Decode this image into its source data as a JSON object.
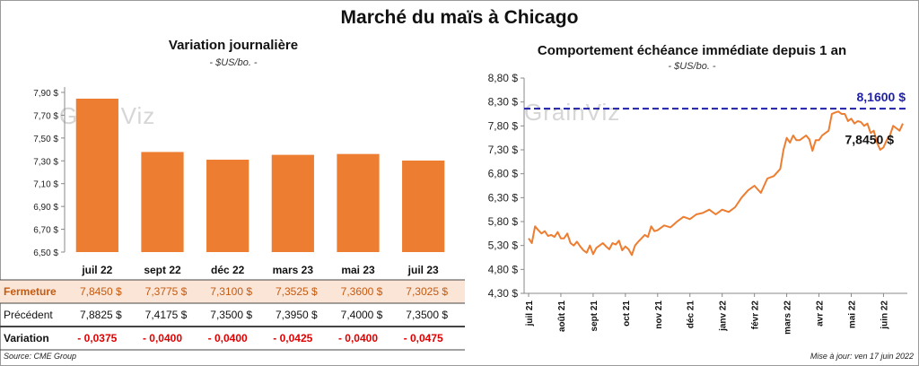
{
  "title": "Marché du maïs à Chicago",
  "left": {
    "title": "Variation  journalière",
    "subtitle": "- $US/bo. -"
  },
  "right": {
    "title": "Comportement  échéance immédiate depuis 1 an",
    "subtitle": "- $US/bo. -"
  },
  "watermark": "GrainViz",
  "table": {
    "row_labels": [
      "Fermeture",
      "Précédent",
      "Variation"
    ],
    "fermeture": [
      "7,8450  $",
      "7,3775  $",
      "7,3100  $",
      "7,3525  $",
      "7,3600  $",
      "7,3025  $"
    ],
    "precedent": [
      "7,8825  $",
      "7,4175  $",
      "7,3500  $",
      "7,3950  $",
      "7,4000  $",
      "7,3500  $"
    ],
    "variation": [
      "- 0,0375",
      "- 0,0400",
      "- 0,0400",
      "- 0,0425",
      "- 0,0400",
      "- 0,0475"
    ]
  },
  "footer": {
    "source": "Source: CME Group",
    "update": "Mise à jour: ven 17 juin 2022"
  },
  "colors": {
    "bar": "#ED7D31",
    "line": "#ED7D31",
    "ref_line": "#1F1FA8",
    "neg": "#E00000",
    "fermeture_bg": "#FBE5D6"
  },
  "chart_data": [
    {
      "type": "bar",
      "title": "Variation  journalière",
      "subtitle": "- $US/bo. -",
      "categories": [
        "juil 22",
        "sept 22",
        "déc 22",
        "mars 23",
        "mai 23",
        "juil 23"
      ],
      "values": [
        7.845,
        7.3775,
        7.31,
        7.3525,
        7.36,
        7.3025
      ],
      "ylim": [
        6.5,
        7.9
      ],
      "yticks": [
        "6,50 $",
        "6,70 $",
        "6,90 $",
        "7,10 $",
        "7,30 $",
        "7,50 $",
        "7,70 $",
        "7,90 $"
      ],
      "ytick_values": [
        6.5,
        6.7,
        6.9,
        7.1,
        7.3,
        7.5,
        7.7,
        7.9
      ],
      "grid": false
    },
    {
      "type": "line",
      "title": "Comportement  échéance immédiate depuis 1 an",
      "subtitle": "- $US/bo. -",
      "ylim": [
        4.3,
        8.8
      ],
      "yticks": [
        "4,30 $",
        "4,80 $",
        "5,30 $",
        "5,80 $",
        "6,30 $",
        "6,80 $",
        "7,30 $",
        "7,80 $",
        "8,30 $",
        "8,80 $"
      ],
      "ytick_values": [
        4.3,
        4.8,
        5.3,
        5.8,
        6.3,
        6.8,
        7.3,
        7.8,
        8.3,
        8.8
      ],
      "xticks": [
        "juil 21",
        "août 21",
        "sept 21",
        "oct 21",
        "nov 21",
        "déc 21",
        "janv 22",
        "févr 22",
        "mars 22",
        "avr 22",
        "mai 22",
        "juin 22"
      ],
      "xtick_positions": [
        0,
        1,
        2,
        3,
        4,
        5,
        6,
        7,
        8,
        9,
        10,
        11
      ],
      "x_range": [
        0,
        11.6
      ],
      "x": [
        0,
        0.1,
        0.2,
        0.3,
        0.4,
        0.5,
        0.6,
        0.7,
        0.8,
        0.9,
        1.0,
        1.1,
        1.2,
        1.3,
        1.4,
        1.5,
        1.6,
        1.7,
        1.8,
        1.9,
        2.0,
        2.1,
        2.2,
        2.3,
        2.4,
        2.5,
        2.6,
        2.7,
        2.8,
        2.9,
        3.0,
        3.1,
        3.2,
        3.3,
        3.4,
        3.5,
        3.6,
        3.7,
        3.8,
        3.9,
        4.0,
        4.2,
        4.4,
        4.6,
        4.8,
        5.0,
        5.2,
        5.4,
        5.6,
        5.8,
        6.0,
        6.2,
        6.4,
        6.6,
        6.8,
        7.0,
        7.2,
        7.4,
        7.6,
        7.8,
        7.9,
        8.0,
        8.1,
        8.2,
        8.3,
        8.4,
        8.5,
        8.6,
        8.7,
        8.8,
        8.9,
        9.0,
        9.1,
        9.2,
        9.3,
        9.4,
        9.5,
        9.6,
        9.7,
        9.8,
        9.9,
        10.0,
        10.1,
        10.2,
        10.3,
        10.4,
        10.5,
        10.6,
        10.7,
        10.8,
        10.9,
        11.0,
        11.1,
        11.2,
        11.3,
        11.4,
        11.5,
        11.6
      ],
      "y": [
        5.45,
        5.35,
        5.7,
        5.62,
        5.55,
        5.6,
        5.5,
        5.52,
        5.48,
        5.58,
        5.45,
        5.45,
        5.55,
        5.35,
        5.3,
        5.38,
        5.28,
        5.2,
        5.15,
        5.3,
        5.12,
        5.25,
        5.3,
        5.35,
        5.28,
        5.22,
        5.35,
        5.32,
        5.4,
        5.2,
        5.28,
        5.22,
        5.1,
        5.3,
        5.38,
        5.45,
        5.52,
        5.48,
        5.7,
        5.6,
        5.62,
        5.72,
        5.68,
        5.8,
        5.9,
        5.85,
        5.95,
        5.98,
        6.05,
        5.95,
        6.05,
        6.0,
        6.1,
        6.3,
        6.45,
        6.55,
        6.4,
        6.7,
        6.75,
        6.9,
        7.3,
        7.55,
        7.45,
        7.6,
        7.5,
        7.5,
        7.55,
        7.6,
        7.52,
        7.28,
        7.5,
        7.5,
        7.6,
        7.65,
        7.7,
        8.05,
        8.08,
        8.1,
        8.05,
        8.05,
        7.9,
        7.95,
        7.85,
        7.9,
        7.88,
        7.8,
        7.85,
        7.65,
        7.7,
        7.45,
        7.3,
        7.35,
        7.5,
        7.6,
        7.8,
        7.75,
        7.7,
        7.85
      ],
      "ref_value": 8.16,
      "ref_label": "8,1600 $",
      "last_label": "7,8450 $",
      "grid": false
    }
  ]
}
